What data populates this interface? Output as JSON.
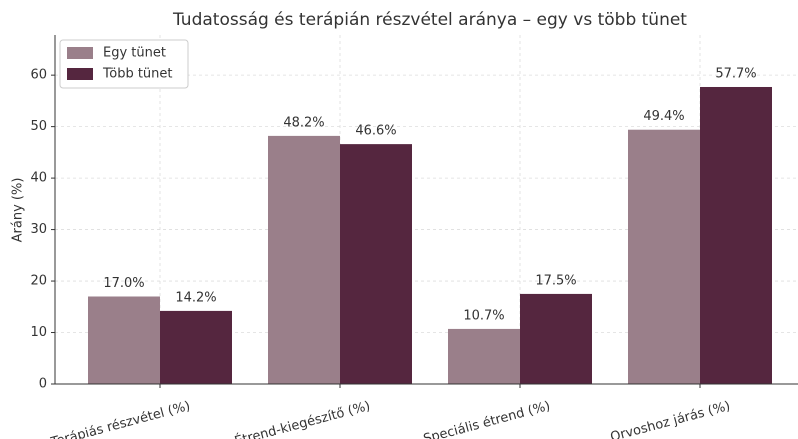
{
  "chart_data": {
    "type": "bar",
    "title": "Tudatosság és terápián részvétel aránya – egy vs több tünet",
    "y_label": "Arány (%)",
    "categories": [
      "Terápiás részvétel (%)",
      "Étrend-kiegészítő (%)",
      "Speciális étrend (%)",
      "Orvoshoz járás (%)"
    ],
    "series": [
      {
        "name": "Egy tünet",
        "color": "#9a7f8a",
        "values": [
          17.0,
          48.2,
          10.7,
          49.4
        ],
        "value_labels": [
          "17.0%",
          "48.2%",
          "10.7%",
          "49.4%"
        ]
      },
      {
        "name": "Több tünet",
        "color": "#55263f",
        "values": [
          14.2,
          46.6,
          17.5,
          57.7
        ],
        "value_labels": [
          "14.2%",
          "46.6%",
          "17.5%",
          "57.7%"
        ]
      }
    ],
    "ylim": [
      0,
      67.8
    ],
    "yticks": [
      0,
      10,
      20,
      30,
      40,
      50,
      60
    ],
    "grid": true,
    "legend": "upper left"
  }
}
